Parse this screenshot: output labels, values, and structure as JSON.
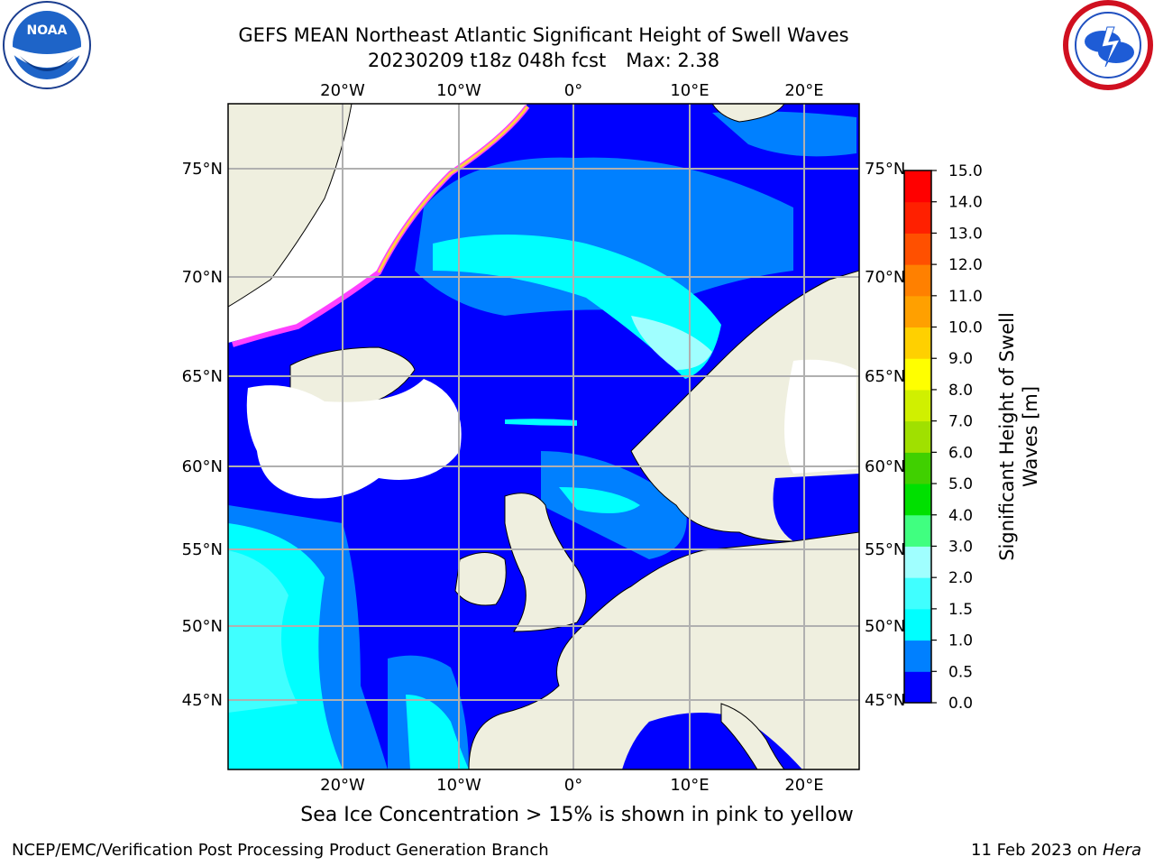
{
  "title": {
    "line1": "GEFS MEAN Northeast Atlantic Significant Height of Swell Waves",
    "run": "20230209 t18z 048h fcst",
    "max": "Max: 2.38"
  },
  "logos": {
    "left": "noaa-logo",
    "right": "nws-logo",
    "noaa_text": "NOAA"
  },
  "axes": {
    "lon_labels": [
      "20°W",
      "10°W",
      "0°",
      "10°E",
      "20°E"
    ],
    "lat_labels": [
      "75°N",
      "70°N",
      "65°N",
      "60°N",
      "55°N",
      "50°N",
      "45°N"
    ]
  },
  "colorbar": {
    "label_line1": "Significant Height of Swell",
    "label_line2": "Waves [m]",
    "ticks": [
      "0.0",
      "0.5",
      "1.0",
      "1.5",
      "2.0",
      "3.0",
      "4.0",
      "5.0",
      "6.0",
      "7.0",
      "8.0",
      "9.0",
      "10.0",
      "11.0",
      "12.0",
      "13.0",
      "14.0",
      "15.0"
    ],
    "colors": [
      "#0000ff",
      "#0080ff",
      "#00ffff",
      "#40ffff",
      "#a0ffff",
      "#40ff80",
      "#00e000",
      "#40d000",
      "#a0e000",
      "#d0f000",
      "#ffff00",
      "#ffd000",
      "#ffa000",
      "#ff8000",
      "#ff5000",
      "#ff2000",
      "#ff0000"
    ]
  },
  "caption": "Sea Ice Concentration > 15% is shown in pink to yellow",
  "footer": {
    "left": "NCEP/EMC/Verification Post Processing Product Generation Branch",
    "date": "11 Feb 2023 on",
    "host": "Hera"
  }
}
